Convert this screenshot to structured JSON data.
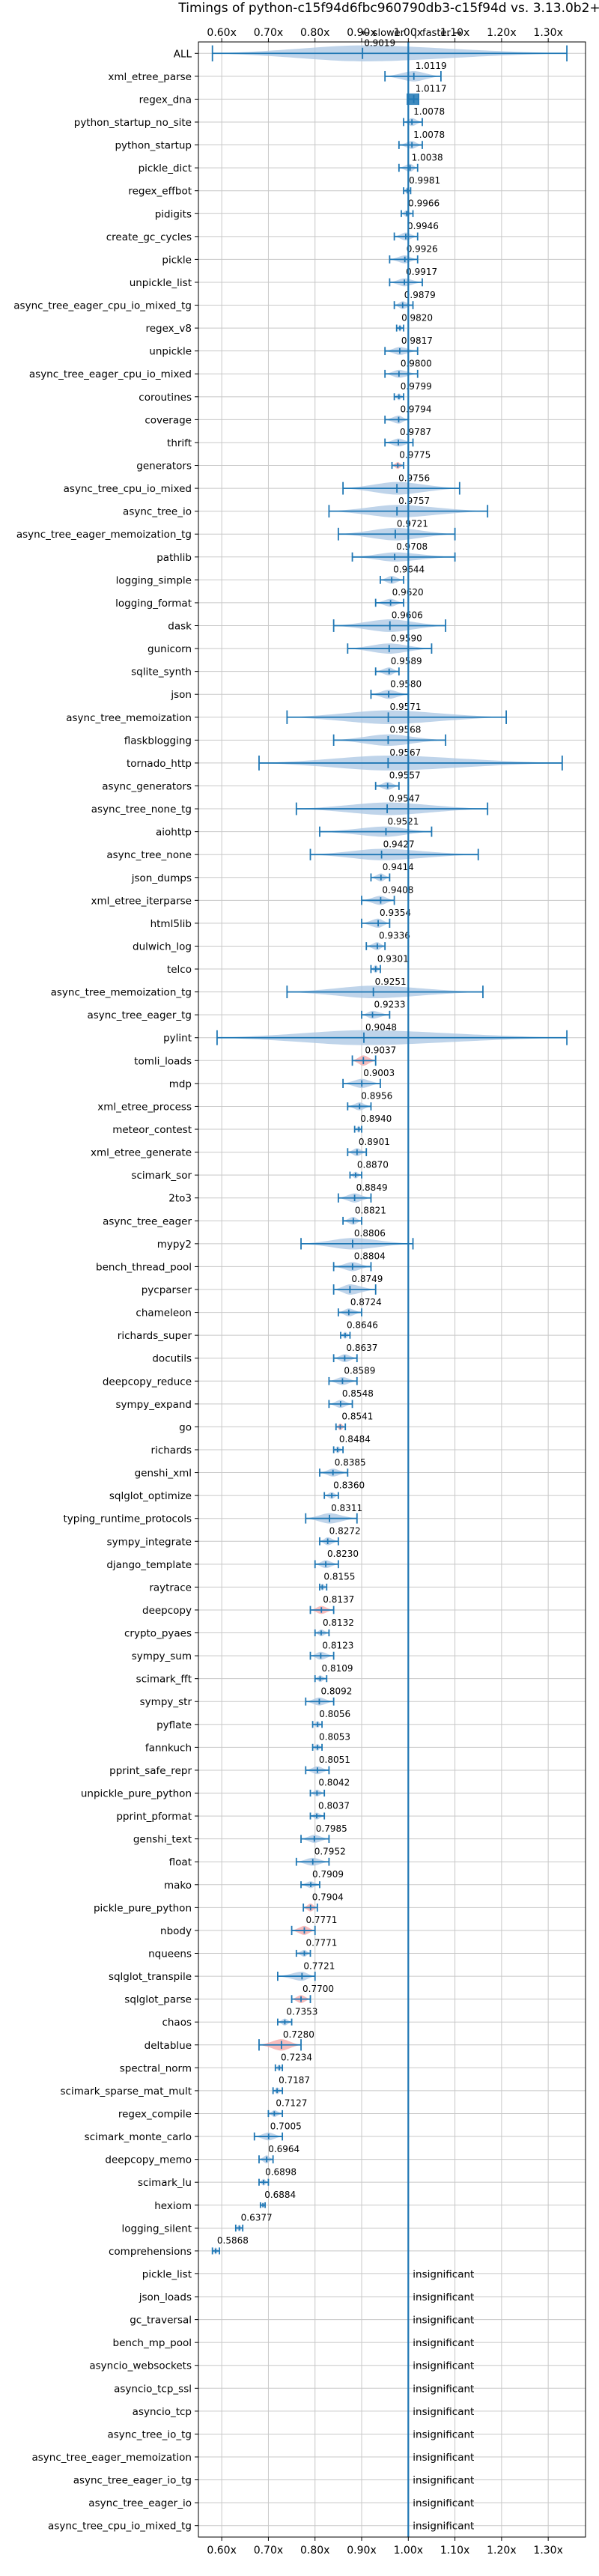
{
  "chart_data": {
    "type": "violin",
    "title": "Timings of python-c15f94d6fbc960790db3-c15f94d vs. 3.13.0b2+",
    "subtitle_slower": "← slower",
    "subtitle_faster": "faster →",
    "subtitle_separator": "|",
    "xlim": [
      0.55,
      1.38
    ],
    "xticks": [
      0.6,
      0.7,
      0.8,
      0.9,
      1.0,
      1.1,
      1.2,
      1.3
    ],
    "xtick_labels": [
      "0.60x",
      "0.70x",
      "0.80x",
      "0.90x",
      "1.00x",
      "1.10x",
      "1.20x",
      "1.30x"
    ],
    "reference_x": 1.0,
    "insignificant_label": "insignificant",
    "grid": true,
    "colors": {
      "violin": "#a9c6e3",
      "line": "#1f77b4",
      "highlight": "#f4a6a6",
      "grid": "#c8c8c8"
    },
    "benchmarks": [
      {
        "name": "ALL",
        "value": 0.9019,
        "label": "0.9019",
        "min": 0.58,
        "max": 1.34,
        "width": 0.7,
        "style": "wide"
      },
      {
        "name": "xml_etree_parse",
        "value": 1.0119,
        "label": "1.0119",
        "min": 0.95,
        "max": 1.07,
        "width": 0.45
      },
      {
        "name": "regex_dna",
        "value": 1.0117,
        "label": "1.0117",
        "min": 0.998,
        "max": 1.022,
        "width": 0.5,
        "style": "box"
      },
      {
        "name": "python_startup_no_site",
        "value": 1.0078,
        "label": "1.0078",
        "min": 0.99,
        "max": 1.03,
        "width": 0.35
      },
      {
        "name": "python_startup",
        "value": 1.0078,
        "label": "1.0078",
        "min": 0.98,
        "max": 1.03,
        "width": 0.35
      },
      {
        "name": "pickle_dict",
        "value": 1.0038,
        "label": "1.0038",
        "min": 0.98,
        "max": 1.02,
        "width": 0.35
      },
      {
        "name": "regex_effbot",
        "value": 0.9981,
        "label": "0.9981",
        "min": 0.99,
        "max": 1.005,
        "width": 0.3
      },
      {
        "name": "pidigits",
        "value": 0.9966,
        "label": "0.9966",
        "min": 0.985,
        "max": 1.01,
        "width": 0.3
      },
      {
        "name": "create_gc_cycles",
        "value": 0.9946,
        "label": "0.9946",
        "min": 0.97,
        "max": 1.02,
        "width": 0.35
      },
      {
        "name": "pickle",
        "value": 0.9926,
        "label": "0.9926",
        "min": 0.96,
        "max": 1.02,
        "width": 0.35
      },
      {
        "name": "unpickle_list",
        "value": 0.9917,
        "label": "0.9917",
        "min": 0.96,
        "max": 1.03,
        "width": 0.35
      },
      {
        "name": "async_tree_eager_cpu_io_mixed_tg",
        "value": 0.9879,
        "label": "0.9879",
        "min": 0.97,
        "max": 1.01,
        "width": 0.35
      },
      {
        "name": "regex_v8",
        "value": 0.982,
        "label": "0.9820",
        "min": 0.975,
        "max": 0.99,
        "width": 0.3
      },
      {
        "name": "unpickle",
        "value": 0.9817,
        "label": "0.9817",
        "min": 0.95,
        "max": 1.02,
        "width": 0.35
      },
      {
        "name": "async_tree_eager_cpu_io_mixed",
        "value": 0.98,
        "label": "0.9800",
        "min": 0.95,
        "max": 1.02,
        "width": 0.35
      },
      {
        "name": "coroutines",
        "value": 0.9799,
        "label": "0.9799",
        "min": 0.97,
        "max": 0.99,
        "width": 0.3
      },
      {
        "name": "coverage",
        "value": 0.9794,
        "label": "0.9794",
        "min": 0.95,
        "max": 1.0,
        "width": 0.35
      },
      {
        "name": "thrift",
        "value": 0.9787,
        "label": "0.9787",
        "min": 0.95,
        "max": 1.01,
        "width": 0.35
      },
      {
        "name": "generators",
        "value": 0.9775,
        "label": "0.9775",
        "min": 0.965,
        "max": 0.99,
        "width": 0.3,
        "highlight": true
      },
      {
        "name": "async_tree_cpu_io_mixed",
        "value": 0.9756,
        "label": "0.9756",
        "min": 0.86,
        "max": 1.11,
        "width": 0.55
      },
      {
        "name": "async_tree_io",
        "value": 0.9757,
        "label": "0.9757",
        "min": 0.83,
        "max": 1.17,
        "width": 0.55
      },
      {
        "name": "async_tree_eager_memoization_tg",
        "value": 0.9721,
        "label": "0.9721",
        "min": 0.85,
        "max": 1.1,
        "width": 0.55
      },
      {
        "name": "pathlib",
        "value": 0.9708,
        "label": "0.9708",
        "min": 0.88,
        "max": 1.1,
        "width": 0.4
      },
      {
        "name": "logging_simple",
        "value": 0.9644,
        "label": "0.9644",
        "min": 0.94,
        "max": 0.99,
        "width": 0.35
      },
      {
        "name": "logging_format",
        "value": 0.962,
        "label": "0.9620",
        "min": 0.93,
        "max": 0.99,
        "width": 0.35
      },
      {
        "name": "dask",
        "value": 0.9606,
        "label": "0.9606",
        "min": 0.84,
        "max": 1.08,
        "width": 0.55
      },
      {
        "name": "gunicorn",
        "value": 0.959,
        "label": "0.9590",
        "min": 0.87,
        "max": 1.05,
        "width": 0.45
      },
      {
        "name": "sqlite_synth",
        "value": 0.9589,
        "label": "0.9589",
        "min": 0.93,
        "max": 0.98,
        "width": 0.35
      },
      {
        "name": "json",
        "value": 0.958,
        "label": "0.9580",
        "min": 0.92,
        "max": 1.0,
        "width": 0.4
      },
      {
        "name": "async_tree_memoization",
        "value": 0.9571,
        "label": "0.9571",
        "min": 0.74,
        "max": 1.21,
        "width": 0.6
      },
      {
        "name": "flaskblogging",
        "value": 0.9568,
        "label": "0.9568",
        "min": 0.84,
        "max": 1.08,
        "width": 0.5
      },
      {
        "name": "tornado_http",
        "value": 0.9567,
        "label": "0.9567",
        "min": 0.68,
        "max": 1.33,
        "width": 0.65
      },
      {
        "name": "async_generators",
        "value": 0.9557,
        "label": "0.9557",
        "min": 0.93,
        "max": 0.98,
        "width": 0.35
      },
      {
        "name": "async_tree_none_tg",
        "value": 0.9547,
        "label": "0.9547",
        "min": 0.76,
        "max": 1.17,
        "width": 0.55
      },
      {
        "name": "aiohttp",
        "value": 0.9521,
        "label": "0.9521",
        "min": 0.81,
        "max": 1.05,
        "width": 0.45
      },
      {
        "name": "async_tree_none",
        "value": 0.9427,
        "label": "0.9427",
        "min": 0.79,
        "max": 1.15,
        "width": 0.5
      },
      {
        "name": "json_dumps",
        "value": 0.9414,
        "label": "0.9414",
        "min": 0.92,
        "max": 0.96,
        "width": 0.35
      },
      {
        "name": "xml_etree_iterparse",
        "value": 0.9408,
        "label": "0.9408",
        "min": 0.9,
        "max": 0.97,
        "width": 0.4
      },
      {
        "name": "html5lib",
        "value": 0.9354,
        "label": "0.9354",
        "min": 0.9,
        "max": 0.96,
        "width": 0.4
      },
      {
        "name": "dulwich_log",
        "value": 0.9336,
        "label": "0.9336",
        "min": 0.91,
        "max": 0.95,
        "width": 0.35
      },
      {
        "name": "telco",
        "value": 0.9301,
        "label": "0.9301",
        "min": 0.92,
        "max": 0.94,
        "width": 0.35
      },
      {
        "name": "async_tree_memoization_tg",
        "value": 0.9251,
        "label": "0.9251",
        "min": 0.74,
        "max": 1.16,
        "width": 0.55
      },
      {
        "name": "async_tree_eager_tg",
        "value": 0.9233,
        "label": "0.9233",
        "min": 0.9,
        "max": 0.96,
        "width": 0.35
      },
      {
        "name": "pylint",
        "value": 0.9048,
        "label": "0.9048",
        "min": 0.59,
        "max": 1.34,
        "width": 0.65
      },
      {
        "name": "tomli_loads",
        "value": 0.9037,
        "label": "0.9037",
        "min": 0.88,
        "max": 0.93,
        "width": 0.45,
        "highlight": true
      },
      {
        "name": "mdp",
        "value": 0.9003,
        "label": "0.9003",
        "min": 0.86,
        "max": 0.94,
        "width": 0.4
      },
      {
        "name": "xml_etree_process",
        "value": 0.8956,
        "label": "0.8956",
        "min": 0.87,
        "max": 0.92,
        "width": 0.35
      },
      {
        "name": "meteor_contest",
        "value": 0.894,
        "label": "0.8940",
        "min": 0.885,
        "max": 0.9,
        "width": 0.3
      },
      {
        "name": "xml_etree_generate",
        "value": 0.8901,
        "label": "0.8901",
        "min": 0.87,
        "max": 0.91,
        "width": 0.35
      },
      {
        "name": "scimark_sor",
        "value": 0.887,
        "label": "0.8870",
        "min": 0.875,
        "max": 0.9,
        "width": 0.3
      },
      {
        "name": "2to3",
        "value": 0.8849,
        "label": "0.8849",
        "min": 0.85,
        "max": 0.92,
        "width": 0.4
      },
      {
        "name": "async_tree_eager",
        "value": 0.8821,
        "label": "0.8821",
        "min": 0.86,
        "max": 0.9,
        "width": 0.35
      },
      {
        "name": "mypy2",
        "value": 0.8806,
        "label": "0.8806",
        "min": 0.77,
        "max": 1.01,
        "width": 0.5
      },
      {
        "name": "bench_thread_pool",
        "value": 0.8804,
        "label": "0.8804",
        "min": 0.84,
        "max": 0.92,
        "width": 0.4
      },
      {
        "name": "pycparser",
        "value": 0.8749,
        "label": "0.8749",
        "min": 0.84,
        "max": 0.93,
        "width": 0.45
      },
      {
        "name": "chameleon",
        "value": 0.8724,
        "label": "0.8724",
        "min": 0.85,
        "max": 0.9,
        "width": 0.35
      },
      {
        "name": "richards_super",
        "value": 0.8646,
        "label": "0.8646",
        "min": 0.855,
        "max": 0.875,
        "width": 0.3
      },
      {
        "name": "docutils",
        "value": 0.8637,
        "label": "0.8637",
        "min": 0.84,
        "max": 0.89,
        "width": 0.35
      },
      {
        "name": "deepcopy_reduce",
        "value": 0.8589,
        "label": "0.8589",
        "min": 0.83,
        "max": 0.89,
        "width": 0.35
      },
      {
        "name": "sympy_expand",
        "value": 0.8548,
        "label": "0.8548",
        "min": 0.83,
        "max": 0.88,
        "width": 0.35
      },
      {
        "name": "go",
        "value": 0.8541,
        "label": "0.8541",
        "min": 0.845,
        "max": 0.865,
        "width": 0.3,
        "highlight": true
      },
      {
        "name": "richards",
        "value": 0.8484,
        "label": "0.8484",
        "min": 0.84,
        "max": 0.86,
        "width": 0.3
      },
      {
        "name": "genshi_xml",
        "value": 0.8385,
        "label": "0.8385",
        "min": 0.81,
        "max": 0.87,
        "width": 0.35
      },
      {
        "name": "sqlglot_optimize",
        "value": 0.836,
        "label": "0.8360",
        "min": 0.82,
        "max": 0.85,
        "width": 0.3
      },
      {
        "name": "typing_runtime_protocols",
        "value": 0.8311,
        "label": "0.8311",
        "min": 0.78,
        "max": 0.89,
        "width": 0.45
      },
      {
        "name": "sympy_integrate",
        "value": 0.8272,
        "label": "0.8272",
        "min": 0.81,
        "max": 0.85,
        "width": 0.35
      },
      {
        "name": "django_template",
        "value": 0.823,
        "label": "0.8230",
        "min": 0.8,
        "max": 0.85,
        "width": 0.35
      },
      {
        "name": "raytrace",
        "value": 0.8155,
        "label": "0.8155",
        "min": 0.81,
        "max": 0.825,
        "width": 0.3
      },
      {
        "name": "deepcopy",
        "value": 0.8137,
        "label": "0.8137",
        "min": 0.79,
        "max": 0.84,
        "width": 0.35,
        "highlight": true
      },
      {
        "name": "crypto_pyaes",
        "value": 0.8132,
        "label": "0.8132",
        "min": 0.8,
        "max": 0.83,
        "width": 0.3
      },
      {
        "name": "sympy_sum",
        "value": 0.8123,
        "label": "0.8123",
        "min": 0.79,
        "max": 0.84,
        "width": 0.35
      },
      {
        "name": "scimark_fft",
        "value": 0.8109,
        "label": "0.8109",
        "min": 0.8,
        "max": 0.825,
        "width": 0.3
      },
      {
        "name": "sympy_str",
        "value": 0.8092,
        "label": "0.8092",
        "min": 0.78,
        "max": 0.84,
        "width": 0.35
      },
      {
        "name": "pyflate",
        "value": 0.8056,
        "label": "0.8056",
        "min": 0.795,
        "max": 0.815,
        "width": 0.3
      },
      {
        "name": "fannkuch",
        "value": 0.8053,
        "label": "0.8053",
        "min": 0.795,
        "max": 0.815,
        "width": 0.3
      },
      {
        "name": "pprint_safe_repr",
        "value": 0.8051,
        "label": "0.8051",
        "min": 0.78,
        "max": 0.83,
        "width": 0.35
      },
      {
        "name": "unpickle_pure_python",
        "value": 0.8042,
        "label": "0.8042",
        "min": 0.79,
        "max": 0.82,
        "width": 0.3
      },
      {
        "name": "pprint_pformat",
        "value": 0.8037,
        "label": "0.8037",
        "min": 0.79,
        "max": 0.82,
        "width": 0.3
      },
      {
        "name": "genshi_text",
        "value": 0.7985,
        "label": "0.7985",
        "min": 0.77,
        "max": 0.83,
        "width": 0.35
      },
      {
        "name": "float",
        "value": 0.7952,
        "label": "0.7952",
        "min": 0.76,
        "max": 0.83,
        "width": 0.35
      },
      {
        "name": "mako",
        "value": 0.7909,
        "label": "0.7909",
        "min": 0.77,
        "max": 0.81,
        "width": 0.3
      },
      {
        "name": "pickle_pure_python",
        "value": 0.7904,
        "label": "0.7904",
        "min": 0.775,
        "max": 0.805,
        "width": 0.35,
        "highlight": true
      },
      {
        "name": "nbody",
        "value": 0.7771,
        "label": "0.7771",
        "min": 0.75,
        "max": 0.8,
        "width": 0.4,
        "highlight": true
      },
      {
        "name": "nqueens",
        "value": 0.7771,
        "label": "0.7771",
        "min": 0.76,
        "max": 0.79,
        "width": 0.3
      },
      {
        "name": "sqlglot_transpile",
        "value": 0.7721,
        "label": "0.7721",
        "min": 0.72,
        "max": 0.8,
        "width": 0.4
      },
      {
        "name": "sqlglot_parse",
        "value": 0.77,
        "label": "0.7700",
        "min": 0.75,
        "max": 0.79,
        "width": 0.35,
        "highlight": true
      },
      {
        "name": "chaos",
        "value": 0.7353,
        "label": "0.7353",
        "min": 0.72,
        "max": 0.75,
        "width": 0.3
      },
      {
        "name": "deltablue",
        "value": 0.728,
        "label": "0.7280",
        "min": 0.68,
        "max": 0.77,
        "width": 0.5,
        "highlight": true
      },
      {
        "name": "spectral_norm",
        "value": 0.7234,
        "label": "0.7234",
        "min": 0.715,
        "max": 0.73,
        "width": 0.3
      },
      {
        "name": "scimark_sparse_mat_mult",
        "value": 0.7187,
        "label": "0.7187",
        "min": 0.71,
        "max": 0.73,
        "width": 0.3
      },
      {
        "name": "regex_compile",
        "value": 0.7127,
        "label": "0.7127",
        "min": 0.7,
        "max": 0.73,
        "width": 0.3
      },
      {
        "name": "scimark_monte_carlo",
        "value": 0.7005,
        "label": "0.7005",
        "min": 0.67,
        "max": 0.73,
        "width": 0.35
      },
      {
        "name": "deepcopy_memo",
        "value": 0.6964,
        "label": "0.6964",
        "min": 0.68,
        "max": 0.71,
        "width": 0.35
      },
      {
        "name": "scimark_lu",
        "value": 0.6898,
        "label": "0.6898",
        "min": 0.68,
        "max": 0.7,
        "width": 0.3
      },
      {
        "name": "hexiom",
        "value": 0.6884,
        "label": "0.6884",
        "min": 0.683,
        "max": 0.693,
        "width": 0.25
      },
      {
        "name": "logging_silent",
        "value": 0.6377,
        "label": "0.6377",
        "min": 0.63,
        "max": 0.645,
        "width": 0.3
      },
      {
        "name": "comprehensions",
        "value": 0.5868,
        "label": "0.5868",
        "min": 0.58,
        "max": 0.595,
        "width": 0.3
      },
      {
        "name": "pickle_list",
        "insignificant": true
      },
      {
        "name": "json_loads",
        "insignificant": true
      },
      {
        "name": "gc_traversal",
        "insignificant": true
      },
      {
        "name": "bench_mp_pool",
        "insignificant": true
      },
      {
        "name": "asyncio_websockets",
        "insignificant": true
      },
      {
        "name": "asyncio_tcp_ssl",
        "insignificant": true
      },
      {
        "name": "asyncio_tcp",
        "insignificant": true
      },
      {
        "name": "async_tree_io_tg",
        "insignificant": true
      },
      {
        "name": "async_tree_eager_memoization",
        "insignificant": true
      },
      {
        "name": "async_tree_eager_io_tg",
        "insignificant": true
      },
      {
        "name": "async_tree_eager_io",
        "insignificant": true
      },
      {
        "name": "async_tree_cpu_io_mixed_tg",
        "insignificant": true
      }
    ]
  }
}
